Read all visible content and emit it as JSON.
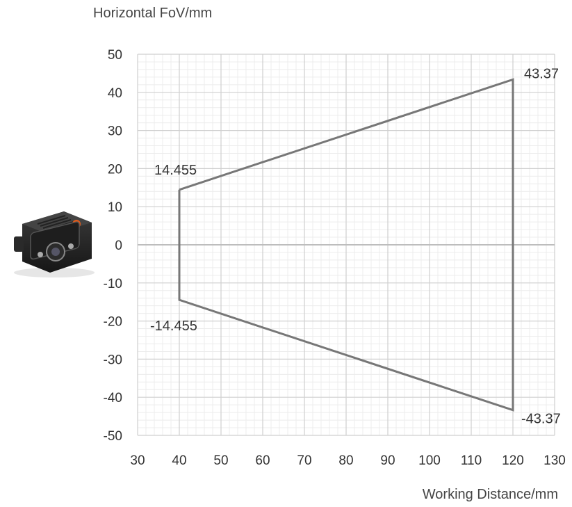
{
  "chart_data": {
    "type": "line",
    "title": "",
    "xlabel": "Working Distance/mm",
    "ylabel": "Horizontal FoV/mm",
    "xlim": [
      30,
      130
    ],
    "ylim": [
      -50,
      50
    ],
    "x_ticks": [
      30,
      40,
      50,
      60,
      70,
      80,
      90,
      100,
      110,
      120,
      130
    ],
    "y_ticks": [
      50,
      40,
      30,
      20,
      10,
      0,
      -10,
      -20,
      -30,
      -40,
      -50
    ],
    "grid": true,
    "series": [
      {
        "color": "#777777",
        "points": [
          [
            40,
            14.455
          ],
          [
            120,
            43.37
          ],
          [
            120,
            -43.37
          ],
          [
            40,
            -14.455
          ],
          [
            40,
            14.455
          ]
        ]
      }
    ],
    "annotations": [
      {
        "text": "14.455",
        "x": 40,
        "y": 14.455
      },
      {
        "text": "-14.455",
        "x": 40,
        "y": -14.455
      },
      {
        "text": "43.37",
        "x": 120,
        "y": 43.37
      },
      {
        "text": "-43.37",
        "x": 120,
        "y": -43.37
      }
    ]
  },
  "image": {
    "icon": "camera-icon"
  }
}
